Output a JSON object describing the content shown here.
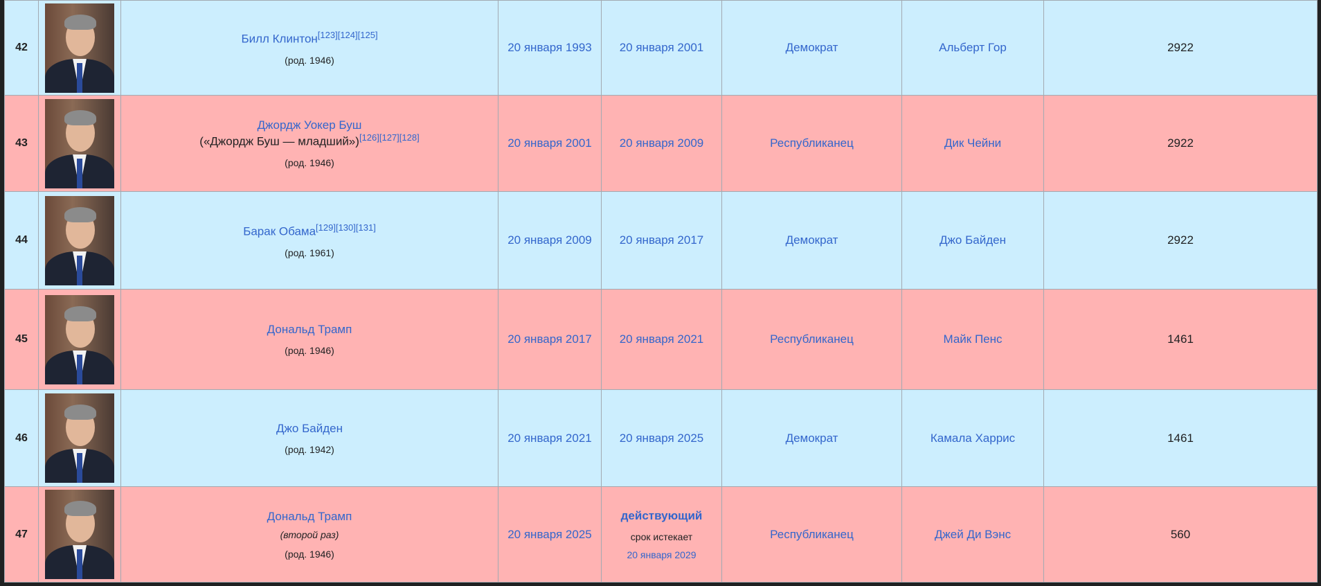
{
  "table": {
    "rows": [
      {
        "number": 42,
        "party_class": "dem",
        "name": "Билл Клинтон",
        "refs": [
          "[123]",
          "[124]",
          "[125]"
        ],
        "birth": "(род. 1946)",
        "start": "20 января 1993",
        "end": "20 января 2001",
        "party": "Демократ",
        "vp": "Альберт Гор",
        "days": 2922
      },
      {
        "number": 43,
        "party_class": "rep",
        "name": "Джордж Уокер Буш",
        "alias": "(«Джордж Буш — младший»)",
        "refs": [
          "[126]",
          "[127]",
          "[128]"
        ],
        "birth": "(род. 1946)",
        "start": "20 января 2001",
        "end": "20 января 2009",
        "party": "Республиканец",
        "vp": "Дик Чейни",
        "days": 2922
      },
      {
        "number": 44,
        "party_class": "dem",
        "name": "Барак Обама",
        "refs": [
          "[129]",
          "[130]",
          "[131]"
        ],
        "birth": "(род. 1961)",
        "start": "20 января 2009",
        "end": "20 января 2017",
        "party": "Демократ",
        "vp": "Джо Байден",
        "days": 2922
      },
      {
        "number": 45,
        "party_class": "rep",
        "name": "Дональд Трамп",
        "birth": "(род. 1946)",
        "start": "20 января 2017",
        "end": "20 января 2021",
        "party": "Республиканец",
        "vp": "Майк Пенс",
        "days": 1461
      },
      {
        "number": 46,
        "party_class": "dem",
        "name": "Джо Байден",
        "birth": "(род. 1942)",
        "start": "20 января 2021",
        "end": "20 января 2025",
        "party": "Демократ",
        "vp": "Камала Харрис",
        "days": 1461
      },
      {
        "number": 47,
        "party_class": "rep",
        "name": "Дональд Трамп",
        "note": "(второй раз)",
        "birth": "(род. 1946)",
        "start": "20 января 2025",
        "status": "действующий",
        "end_note": "срок истекает",
        "end": "20 января 2029",
        "party": "Республиканец",
        "vp": "Джей Ди Вэнс",
        "days": 560
      }
    ]
  }
}
